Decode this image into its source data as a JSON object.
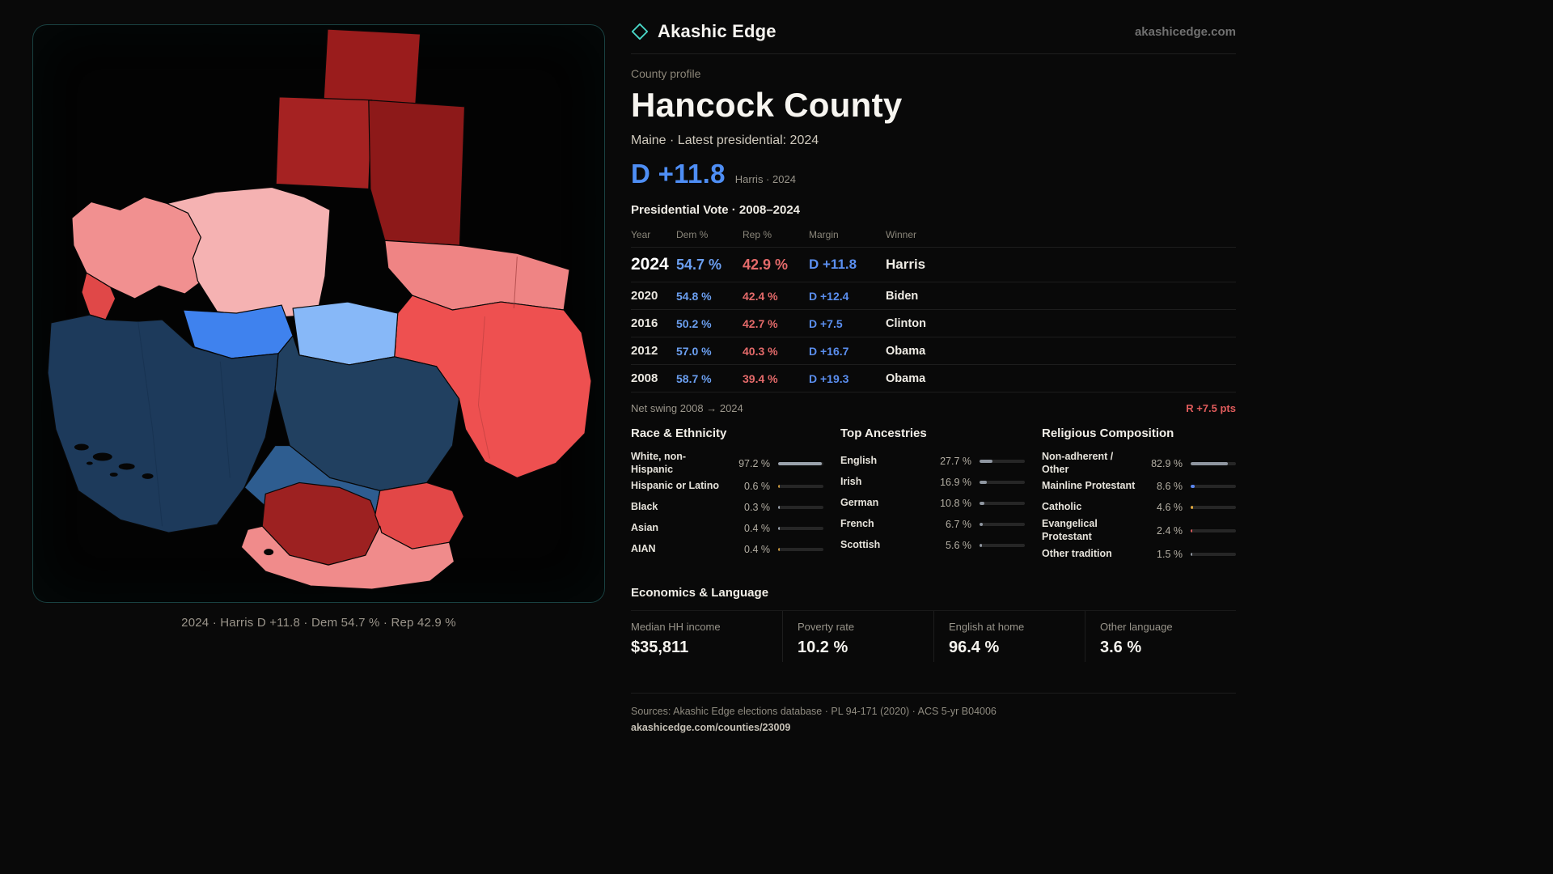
{
  "colors": {
    "dem": "#5b93ee",
    "rep": "#e25f5f",
    "accent_teal": "#49d8c8",
    "background": "#090909"
  },
  "brand": {
    "name": "Akashic Edge",
    "site": "akashicedge.com"
  },
  "profile": {
    "kicker": "County profile",
    "title": "Hancock County",
    "subtitle": "Maine · Latest presidential: 2024",
    "headline_margin": "D +11.8",
    "headline_note": "Harris · 2024"
  },
  "map": {
    "caption": "2024 · Harris D +11.8 · Dem 54.7 % · Rep 42.9 %"
  },
  "vote_table": {
    "title": "Presidential Vote · 2008–2024",
    "columns": [
      "Year",
      "Dem %",
      "Rep %",
      "Margin",
      "Winner"
    ],
    "rows": [
      {
        "year": "2024",
        "dem": "54.7 %",
        "rep": "42.9 %",
        "margin": "D +11.8",
        "winner": "Harris"
      },
      {
        "year": "2020",
        "dem": "54.8 %",
        "rep": "42.4 %",
        "margin": "D +12.4",
        "winner": "Biden"
      },
      {
        "year": "2016",
        "dem": "50.2 %",
        "rep": "42.7 %",
        "margin": "D +7.5",
        "winner": "Clinton"
      },
      {
        "year": "2012",
        "dem": "57.0 %",
        "rep": "40.3 %",
        "margin": "D +16.7",
        "winner": "Obama"
      },
      {
        "year": "2008",
        "dem": "58.7 %",
        "rep": "39.4 %",
        "margin": "D +19.3",
        "winner": "Obama"
      }
    ]
  },
  "swing": {
    "label": "Net swing 2008 → 2024",
    "value": "R +7.5 pts"
  },
  "race": {
    "title": "Race & Ethnicity",
    "rows": [
      {
        "label": "White, non-Hispanic",
        "value": "97.2 %",
        "pct": 97.2,
        "color": "#9aa2ac"
      },
      {
        "label": "Hispanic or Latino",
        "value": "0.6 %",
        "pct": 0.6,
        "color": "#c8963c"
      },
      {
        "label": "Black",
        "value": "0.3 %",
        "pct": 0.3,
        "color": "#9aa2ac"
      },
      {
        "label": "Asian",
        "value": "0.4 %",
        "pct": 0.4,
        "color": "#9aa2ac"
      },
      {
        "label": "AIAN",
        "value": "0.4 %",
        "pct": 0.4,
        "color": "#c8963c"
      }
    ]
  },
  "ancestries": {
    "title": "Top Ancestries",
    "rows": [
      {
        "label": "English",
        "value": "27.7 %",
        "pct": 27.7,
        "color": "#8f96a0"
      },
      {
        "label": "Irish",
        "value": "16.9 %",
        "pct": 16.9,
        "color": "#8f96a0"
      },
      {
        "label": "German",
        "value": "10.8 %",
        "pct": 10.8,
        "color": "#8f96a0"
      },
      {
        "label": "French",
        "value": "6.7 %",
        "pct": 6.7,
        "color": "#8f96a0"
      },
      {
        "label": "Scottish",
        "value": "5.6 %",
        "pct": 5.6,
        "color": "#8f96a0"
      }
    ]
  },
  "religion": {
    "title": "Religious Composition",
    "rows": [
      {
        "label": "Non-adherent / Other",
        "value": "82.9 %",
        "pct": 82.9,
        "color": "#8f96a0"
      },
      {
        "label": "Mainline Protestant",
        "value": "8.6 %",
        "pct": 8.6,
        "color": "#5b86f0"
      },
      {
        "label": "Catholic",
        "value": "4.6 %",
        "pct": 4.6,
        "color": "#e0a83e"
      },
      {
        "label": "Evangelical Protestant",
        "value": "2.4 %",
        "pct": 2.4,
        "color": "#d65a5a"
      },
      {
        "label": "Other tradition",
        "value": "1.5 %",
        "pct": 1.5,
        "color": "#8f96a0"
      }
    ]
  },
  "economics": {
    "title": "Economics & Language",
    "stats": [
      {
        "label": "Median HH income",
        "value": "$35,811"
      },
      {
        "label": "Poverty rate",
        "value": "10.2 %"
      },
      {
        "label": "English at home",
        "value": "96.4 %"
      },
      {
        "label": "Other language",
        "value": "3.6 %"
      }
    ]
  },
  "footer": {
    "sources": "Sources: Akashic Edge elections database · PL 94-171 (2020) · ACS 5-yr B04006",
    "permalink": "akashicedge.com/counties/23009"
  }
}
